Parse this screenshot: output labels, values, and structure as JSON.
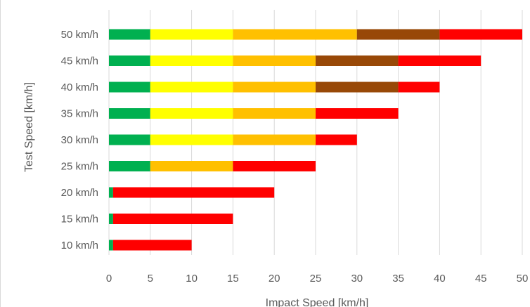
{
  "chart_data": {
    "type": "bar",
    "orientation": "horizontal",
    "stacked": true,
    "title": "",
    "xlabel": "Impact Speed [km/h]",
    "ylabel": "Test Speed [km/h]",
    "xlim": [
      0,
      50
    ],
    "x_ticks": [
      "0",
      "5",
      "10",
      "15",
      "20",
      "25",
      "30",
      "35",
      "40",
      "45",
      "50"
    ],
    "grid": "vertical",
    "legend": "none",
    "categories": [
      "50 km/h",
      "45 km/h",
      "40 km/h",
      "35 km/h",
      "30 km/h",
      "25 km/h",
      "20 km/h",
      "15 km/h",
      "10 km/h"
    ],
    "bars": [
      {
        "category": "50 km/h",
        "segments": [
          {
            "start": 0,
            "end": 5,
            "color": "#00b050"
          },
          {
            "start": 5,
            "end": 15,
            "color": "#ffff00"
          },
          {
            "start": 15,
            "end": 30,
            "color": "#ffc000"
          },
          {
            "start": 30,
            "end": 40,
            "color": "#984807"
          },
          {
            "start": 40,
            "end": 50,
            "color": "#ff0000"
          }
        ]
      },
      {
        "category": "45 km/h",
        "segments": [
          {
            "start": 0,
            "end": 5,
            "color": "#00b050"
          },
          {
            "start": 5,
            "end": 15,
            "color": "#ffff00"
          },
          {
            "start": 15,
            "end": 25,
            "color": "#ffc000"
          },
          {
            "start": 25,
            "end": 35,
            "color": "#984807"
          },
          {
            "start": 35,
            "end": 45,
            "color": "#ff0000"
          }
        ]
      },
      {
        "category": "40 km/h",
        "segments": [
          {
            "start": 0,
            "end": 5,
            "color": "#00b050"
          },
          {
            "start": 5,
            "end": 15,
            "color": "#ffff00"
          },
          {
            "start": 15,
            "end": 25,
            "color": "#ffc000"
          },
          {
            "start": 25,
            "end": 35,
            "color": "#984807"
          },
          {
            "start": 35,
            "end": 40,
            "color": "#ff0000"
          }
        ]
      },
      {
        "category": "35 km/h",
        "segments": [
          {
            "start": 0,
            "end": 5,
            "color": "#00b050"
          },
          {
            "start": 5,
            "end": 15,
            "color": "#ffff00"
          },
          {
            "start": 15,
            "end": 25,
            "color": "#ffc000"
          },
          {
            "start": 25,
            "end": 35,
            "color": "#ff0000"
          }
        ]
      },
      {
        "category": "30 km/h",
        "segments": [
          {
            "start": 0,
            "end": 5,
            "color": "#00b050"
          },
          {
            "start": 5,
            "end": 15,
            "color": "#ffff00"
          },
          {
            "start": 15,
            "end": 25,
            "color": "#ffc000"
          },
          {
            "start": 25,
            "end": 30,
            "color": "#ff0000"
          }
        ]
      },
      {
        "category": "25 km/h",
        "segments": [
          {
            "start": 0,
            "end": 5,
            "color": "#00b050"
          },
          {
            "start": 5,
            "end": 15,
            "color": "#ffc000"
          },
          {
            "start": 15,
            "end": 25,
            "color": "#ff0000"
          }
        ]
      },
      {
        "category": "20 km/h",
        "segments": [
          {
            "start": 0,
            "end": 0.5,
            "color": "#00b050"
          },
          {
            "start": 0.5,
            "end": 20,
            "color": "#ff0000"
          }
        ]
      },
      {
        "category": "15 km/h",
        "segments": [
          {
            "start": 0,
            "end": 0.5,
            "color": "#00b050"
          },
          {
            "start": 0.5,
            "end": 15,
            "color": "#ff0000"
          }
        ]
      },
      {
        "category": "10 km/h",
        "segments": [
          {
            "start": 0,
            "end": 0.5,
            "color": "#00b050"
          },
          {
            "start": 0.5,
            "end": 10,
            "color": "#ff0000"
          }
        ]
      }
    ]
  }
}
